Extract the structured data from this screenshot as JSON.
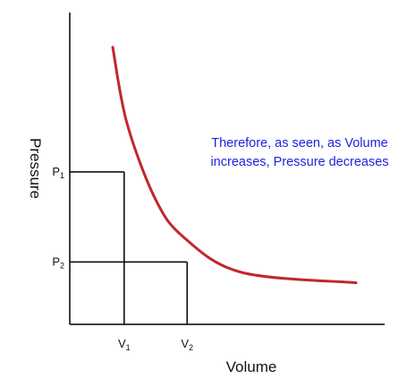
{
  "chart_data": {
    "type": "line",
    "title": "",
    "xlabel": "Volume",
    "ylabel": "Pressure",
    "grid": false,
    "legend": "none",
    "colors": {
      "curve": "#c1272d",
      "annotation": "#1f1fe0",
      "axes": "#000000"
    },
    "series": [
      {
        "name": "",
        "x": [
          0.75,
          1.0,
          1.5,
          2.0,
          3.0,
          5.0
        ],
        "y": [
          4.0,
          2.9,
          1.8,
          1.25,
          0.75,
          0.6
        ]
      }
    ],
    "xlim": [
      0,
      5.5
    ],
    "ylim": [
      0,
      4.5
    ],
    "ticks": {
      "p1": {
        "main": "P",
        "sub": "1",
        "y": 2.2
      },
      "p2": {
        "main": "P",
        "sub": "2",
        "y": 0.9
      },
      "v1": {
        "main": "V",
        "sub": "1",
        "x": 0.95
      },
      "v2": {
        "main": "V",
        "sub": "2",
        "x": 2.05
      }
    },
    "annotation": {
      "line1": "Therefore, as seen, as Volume",
      "line2": "increases, Pressure decreases"
    }
  }
}
